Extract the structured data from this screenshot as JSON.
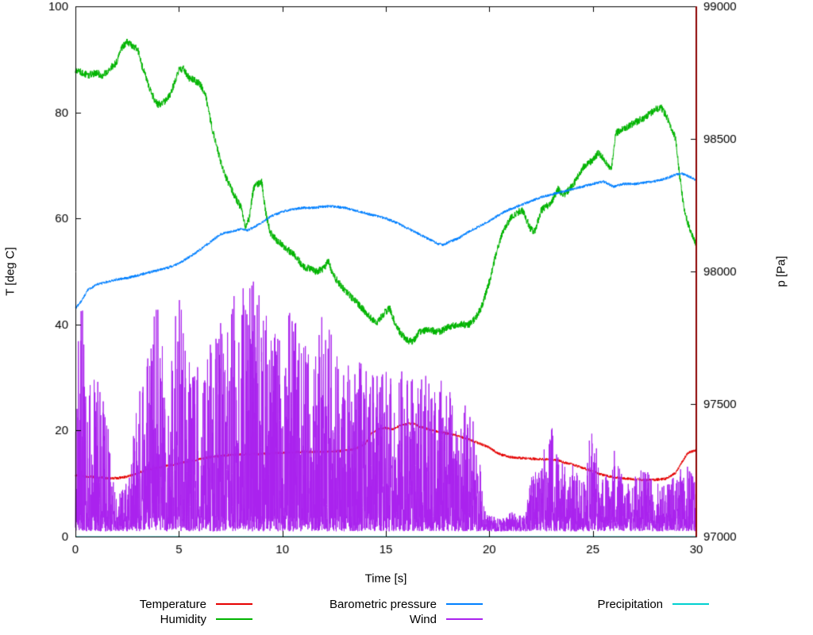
{
  "chart_data": {
    "type": "line",
    "title": "",
    "xlabel": "Time [s]",
    "ylabel_left": "T [deg C]",
    "ylabel_right": "p [Pa]",
    "x_range": [
      0,
      30
    ],
    "y_left_range": [
      0,
      100
    ],
    "y_right_range": [
      97000,
      99000
    ],
    "x_ticks": [
      "0",
      "5",
      "10",
      "15",
      "20",
      "25",
      "30"
    ],
    "x_tick_values": [
      0,
      5,
      10,
      15,
      20,
      25,
      30
    ],
    "y_left_ticks": [
      "0",
      "20",
      "40",
      "60",
      "80",
      "100"
    ],
    "y_left_tick_values": [
      0,
      20,
      40,
      60,
      80,
      100
    ],
    "y_right_ticks": [
      "97000",
      "97500",
      "98000",
      "98500",
      "99000"
    ],
    "y_right_tick_values": [
      97000,
      97500,
      98000,
      98500,
      99000
    ],
    "grid": false,
    "legend_position": "below",
    "noise_seed": 1337,
    "marker_line": {
      "x": 30,
      "color": "#8b0000"
    },
    "legend_columns": [
      [
        "Temperature",
        "Humidity"
      ],
      [
        "Barometric pressure",
        "Wind"
      ],
      [
        "Precipitation"
      ]
    ],
    "series": [
      {
        "name": "Precipitation",
        "color": "#00d0d0",
        "axis": "left",
        "style": "noisy-line",
        "noise": 0,
        "keypoints": [
          [
            0,
            0
          ],
          [
            30,
            0
          ]
        ]
      },
      {
        "name": "Temperature",
        "color": "#e60000",
        "axis": "left",
        "style": "noisy-line",
        "noise": 0.25,
        "keypoints": [
          [
            0,
            11.5
          ],
          [
            0.5,
            11.3
          ],
          [
            1,
            11.2
          ],
          [
            1.5,
            11.0
          ],
          [
            2,
            11.0
          ],
          [
            2.5,
            11.3
          ],
          [
            3,
            12.0
          ],
          [
            3.5,
            12.6
          ],
          [
            4,
            13.0
          ],
          [
            4.5,
            13.4
          ],
          [
            5,
            13.8
          ],
          [
            5.5,
            14.2
          ],
          [
            6,
            14.6
          ],
          [
            6.5,
            15.0
          ],
          [
            7,
            15.2
          ],
          [
            7.5,
            15.4
          ],
          [
            8,
            15.5
          ],
          [
            8.5,
            15.6
          ],
          [
            9,
            15.6
          ],
          [
            9.5,
            15.7
          ],
          [
            10,
            15.8
          ],
          [
            10.5,
            15.9
          ],
          [
            11,
            16.0
          ],
          [
            11.5,
            16.0
          ],
          [
            12,
            16.0
          ],
          [
            12.5,
            16.1
          ],
          [
            13,
            16.2
          ],
          [
            13.5,
            16.5
          ],
          [
            14,
            17.5
          ],
          [
            14.3,
            19.5
          ],
          [
            14.6,
            20.3
          ],
          [
            15,
            20.5
          ],
          [
            15.3,
            20.2
          ],
          [
            15.6,
            20.8
          ],
          [
            16,
            21.2
          ],
          [
            16.3,
            21.4
          ],
          [
            16.6,
            20.8
          ],
          [
            17,
            20.3
          ],
          [
            17.5,
            19.8
          ],
          [
            18,
            19.4
          ],
          [
            18.5,
            19.0
          ],
          [
            19,
            18.3
          ],
          [
            19.5,
            17.6
          ],
          [
            20,
            16.8
          ],
          [
            20.3,
            16.0
          ],
          [
            20.6,
            15.4
          ],
          [
            21,
            15.0
          ],
          [
            21.5,
            14.8
          ],
          [
            22,
            14.7
          ],
          [
            22.5,
            14.6
          ],
          [
            23,
            14.5
          ],
          [
            23.3,
            14.4
          ],
          [
            23.6,
            14.0
          ],
          [
            24,
            13.6
          ],
          [
            24.5,
            13.0
          ],
          [
            25,
            12.3
          ],
          [
            25.5,
            11.6
          ],
          [
            26,
            11.2
          ],
          [
            26.5,
            11.0
          ],
          [
            27,
            10.8
          ],
          [
            27.5,
            10.7
          ],
          [
            28,
            10.7
          ],
          [
            28.5,
            10.9
          ],
          [
            29,
            12.0
          ],
          [
            29.3,
            14.0
          ],
          [
            29.6,
            15.8
          ],
          [
            30,
            16.3
          ]
        ]
      },
      {
        "name": "Humidity",
        "color": "#00b400",
        "axis": "left",
        "style": "noisy-line",
        "noise": 0.7,
        "keypoints": [
          [
            0,
            88
          ],
          [
            0.3,
            87.5
          ],
          [
            0.6,
            87
          ],
          [
            1,
            87.5
          ],
          [
            1.3,
            87
          ],
          [
            1.6,
            88
          ],
          [
            2,
            89.5
          ],
          [
            2.2,
            92
          ],
          [
            2.5,
            93.3
          ],
          [
            2.8,
            92.5
          ],
          [
            3,
            92
          ],
          [
            3.2,
            89
          ],
          [
            3.5,
            85.5
          ],
          [
            3.8,
            82.5
          ],
          [
            4,
            81.5
          ],
          [
            4.3,
            82
          ],
          [
            4.6,
            83.5
          ],
          [
            5,
            88
          ],
          [
            5.2,
            88.3
          ],
          [
            5.5,
            86.5
          ],
          [
            6,
            85.5
          ],
          [
            6.3,
            83
          ],
          [
            6.6,
            77
          ],
          [
            7,
            71
          ],
          [
            7.3,
            67.5
          ],
          [
            7.6,
            65
          ],
          [
            8,
            62
          ],
          [
            8.2,
            58.5
          ],
          [
            8.4,
            60
          ],
          [
            8.6,
            65.5
          ],
          [
            8.8,
            66.5
          ],
          [
            9,
            67
          ],
          [
            9.2,
            61
          ],
          [
            9.4,
            57.5
          ],
          [
            9.7,
            56
          ],
          [
            10,
            55
          ],
          [
            10.3,
            54
          ],
          [
            10.6,
            53
          ],
          [
            11,
            51
          ],
          [
            11.3,
            50.5
          ],
          [
            11.6,
            50
          ],
          [
            12,
            50.5
          ],
          [
            12.2,
            52
          ],
          [
            12.5,
            49
          ],
          [
            13,
            46.5
          ],
          [
            13.5,
            44.5
          ],
          [
            14,
            42.5
          ],
          [
            14.3,
            41
          ],
          [
            14.6,
            40.5
          ],
          [
            15,
            42.5
          ],
          [
            15.2,
            43
          ],
          [
            15.5,
            39.5
          ],
          [
            16,
            37
          ],
          [
            16.3,
            36.8
          ],
          [
            16.6,
            38.5
          ],
          [
            17,
            39
          ],
          [
            17.3,
            38.8
          ],
          [
            17.6,
            38.6
          ],
          [
            18,
            39.5
          ],
          [
            18.5,
            40
          ],
          [
            19,
            40
          ],
          [
            19.3,
            41
          ],
          [
            19.6,
            43
          ],
          [
            20,
            48
          ],
          [
            20.3,
            53
          ],
          [
            20.6,
            57
          ],
          [
            21,
            60
          ],
          [
            21.3,
            61
          ],
          [
            21.6,
            61.5
          ],
          [
            22,
            58
          ],
          [
            22.2,
            57.5
          ],
          [
            22.5,
            61.5
          ],
          [
            23,
            63
          ],
          [
            23.3,
            65.5
          ],
          [
            23.6,
            64.5
          ],
          [
            24,
            66
          ],
          [
            24.5,
            69.5
          ],
          [
            25,
            71
          ],
          [
            25.3,
            72.5
          ],
          [
            25.6,
            70.5
          ],
          [
            25.9,
            69.5
          ],
          [
            26.1,
            76
          ],
          [
            26.5,
            77
          ],
          [
            27,
            78
          ],
          [
            27.5,
            79
          ],
          [
            28,
            80.5
          ],
          [
            28.3,
            81
          ],
          [
            28.6,
            79
          ],
          [
            29,
            75
          ],
          [
            29.2,
            68
          ],
          [
            29.4,
            62
          ],
          [
            29.6,
            59
          ],
          [
            29.8,
            57
          ],
          [
            30,
            55
          ]
        ]
      },
      {
        "name": "Barometric pressure",
        "color": "#0080ff",
        "axis": "right",
        "style": "noisy-line",
        "noise": 5,
        "keypoints": [
          [
            0,
            97860
          ],
          [
            0.3,
            97890
          ],
          [
            0.6,
            97930
          ],
          [
            1,
            97950
          ],
          [
            1.5,
            97960
          ],
          [
            2,
            97970
          ],
          [
            2.5,
            97975
          ],
          [
            3,
            97985
          ],
          [
            3.5,
            97995
          ],
          [
            4,
            98005
          ],
          [
            4.5,
            98015
          ],
          [
            5,
            98030
          ],
          [
            5.5,
            98055
          ],
          [
            6,
            98080
          ],
          [
            6.5,
            98110
          ],
          [
            7,
            98140
          ],
          [
            7.5,
            98150
          ],
          [
            8,
            98160
          ],
          [
            8.3,
            98155
          ],
          [
            8.6,
            98165
          ],
          [
            9,
            98185
          ],
          [
            9.5,
            98210
          ],
          [
            10,
            98225
          ],
          [
            10.5,
            98235
          ],
          [
            11,
            98240
          ],
          [
            11.5,
            98240
          ],
          [
            12,
            98245
          ],
          [
            12.5,
            98245
          ],
          [
            13,
            98240
          ],
          [
            13.5,
            98230
          ],
          [
            14,
            98220
          ],
          [
            14.5,
            98210
          ],
          [
            15,
            98200
          ],
          [
            15.5,
            98185
          ],
          [
            16,
            98165
          ],
          [
            16.5,
            98145
          ],
          [
            17,
            98125
          ],
          [
            17.5,
            98105
          ],
          [
            17.8,
            98100
          ],
          [
            18,
            98110
          ],
          [
            18.5,
            98125
          ],
          [
            19,
            98150
          ],
          [
            19.5,
            98170
          ],
          [
            20,
            98190
          ],
          [
            20.5,
            98215
          ],
          [
            21,
            98235
          ],
          [
            21.5,
            98250
          ],
          [
            22,
            98265
          ],
          [
            22.5,
            98280
          ],
          [
            23,
            98290
          ],
          [
            23.5,
            98300
          ],
          [
            24,
            98310
          ],
          [
            24.5,
            98320
          ],
          [
            25,
            98330
          ],
          [
            25.5,
            98340
          ],
          [
            26,
            98320
          ],
          [
            26.5,
            98330
          ],
          [
            27,
            98330
          ],
          [
            27.5,
            98335
          ],
          [
            28,
            98340
          ],
          [
            28.5,
            98350
          ],
          [
            29,
            98365
          ],
          [
            29.3,
            98370
          ],
          [
            29.6,
            98360
          ],
          [
            30,
            98345
          ]
        ]
      },
      {
        "name": "Wind",
        "color": "#aa22ee",
        "axis": "left",
        "style": "impulse-noise",
        "base": 1,
        "spike_power": 1.7,
        "envelope": [
          [
            0,
            32
          ],
          [
            0.2,
            48
          ],
          [
            0.5,
            35
          ],
          [
            0.8,
            30
          ],
          [
            1,
            30
          ],
          [
            1.3,
            28
          ],
          [
            1.6,
            20
          ],
          [
            1.8,
            10
          ],
          [
            2.2,
            8
          ],
          [
            2.6,
            10
          ],
          [
            3,
            26
          ],
          [
            3.3,
            30
          ],
          [
            3.6,
            35
          ],
          [
            4,
            46
          ],
          [
            4.3,
            32
          ],
          [
            4.6,
            30
          ],
          [
            5,
            48
          ],
          [
            5.3,
            35
          ],
          [
            5.6,
            32
          ],
          [
            6,
            32
          ],
          [
            6.5,
            36
          ],
          [
            7,
            42
          ],
          [
            7.5,
            44
          ],
          [
            8,
            46
          ],
          [
            8.5,
            50
          ],
          [
            9,
            46
          ],
          [
            9.3,
            40
          ],
          [
            9.6,
            38
          ],
          [
            10,
            36
          ],
          [
            10.3,
            44
          ],
          [
            10.6,
            40
          ],
          [
            11,
            38
          ],
          [
            11.5,
            36
          ],
          [
            12,
            42
          ],
          [
            12.5,
            36
          ],
          [
            13,
            32
          ],
          [
            13.5,
            30
          ],
          [
            14,
            34
          ],
          [
            14.5,
            30
          ],
          [
            15,
            32
          ],
          [
            15.5,
            26
          ],
          [
            16,
            34
          ],
          [
            16.5,
            30
          ],
          [
            17,
            30
          ],
          [
            17.5,
            30
          ],
          [
            18,
            28
          ],
          [
            18.5,
            22
          ],
          [
            19,
            26
          ],
          [
            19.3,
            20
          ],
          [
            19.6,
            12
          ],
          [
            19.8,
            4
          ],
          [
            20,
            3
          ],
          [
            20.5,
            2.5
          ],
          [
            21,
            4
          ],
          [
            21.5,
            3
          ],
          [
            21.8,
            6
          ],
          [
            22,
            10
          ],
          [
            22.5,
            13
          ],
          [
            23,
            22
          ],
          [
            23.3,
            16
          ],
          [
            23.6,
            12
          ],
          [
            24,
            15
          ],
          [
            24.5,
            9
          ],
          [
            25,
            22
          ],
          [
            25.3,
            12
          ],
          [
            25.6,
            10
          ],
          [
            26,
            17
          ],
          [
            26.5,
            9
          ],
          [
            27,
            11
          ],
          [
            27.5,
            12
          ],
          [
            28,
            10
          ],
          [
            28.5,
            9
          ],
          [
            29,
            11
          ],
          [
            29.5,
            13
          ],
          [
            30,
            9
          ]
        ]
      }
    ]
  }
}
